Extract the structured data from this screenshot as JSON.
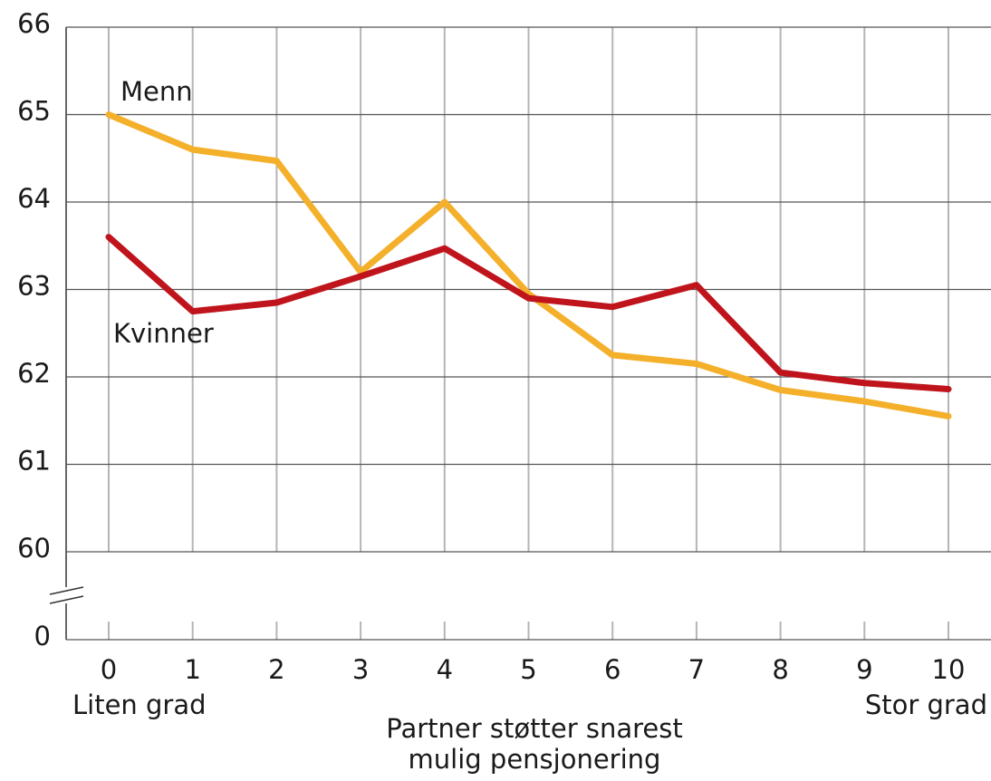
{
  "chart_data": {
    "type": "line",
    "x": [
      0,
      1,
      2,
      3,
      4,
      5,
      6,
      7,
      8,
      9,
      10
    ],
    "xlim": [
      0,
      10
    ],
    "xticks": [
      0,
      1,
      2,
      3,
      4,
      5,
      6,
      7,
      8,
      9,
      10
    ],
    "ylim": [
      0,
      66
    ],
    "y_break": [
      0,
      60
    ],
    "yticks": [
      0,
      60,
      61,
      62,
      63,
      64,
      65,
      66
    ],
    "grid": true,
    "xlabel": [
      "Partner støtter snarest",
      "mulig pensjonering"
    ],
    "x_end_labels": [
      "Liten grad",
      "Stor grad"
    ],
    "series": [
      {
        "name": "Menn",
        "color": "#f4b02a",
        "values": [
          65.0,
          64.6,
          64.47,
          63.2,
          64.0,
          62.95,
          62.25,
          62.15,
          61.85,
          61.72,
          61.55
        ]
      },
      {
        "name": "Kvinner",
        "color": "#c0141c",
        "values": [
          63.6,
          62.75,
          62.85,
          63.15,
          63.47,
          62.9,
          62.8,
          63.05,
          62.05,
          61.93,
          61.86
        ]
      }
    ]
  }
}
